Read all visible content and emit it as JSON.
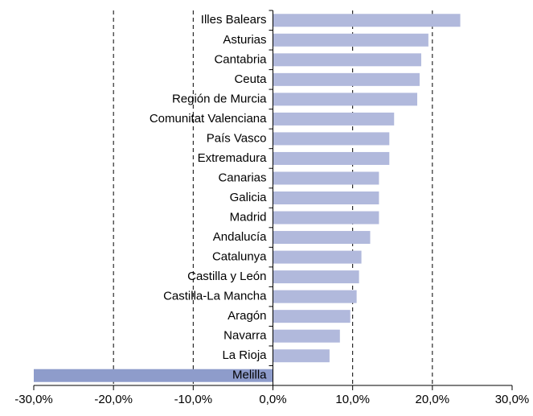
{
  "chart_data": {
    "type": "barh",
    "categories": [
      "Illes Balears",
      "Asturias",
      "Cantabria",
      "Ceuta",
      "Región de Murcia",
      "Comunitat Valenciana",
      "País Vasco",
      "Extremadura",
      "Canarias",
      "Galicia",
      "Madrid",
      "Andalucía",
      "Catalunya",
      "Castilla y León",
      "Castilla-La Mancha",
      "Aragón",
      "Navarra",
      "La Rioja",
      "Melilla"
    ],
    "values": [
      23.5,
      19.5,
      18.6,
      18.4,
      18.1,
      15.2,
      14.6,
      14.6,
      13.3,
      13.3,
      13.3,
      12.2,
      11.1,
      10.8,
      10.5,
      9.7,
      8.4,
      7.1,
      -30.0
    ],
    "colors": [
      "#b1b9dc",
      "#b1b9dc",
      "#b1b9dc",
      "#b1b9dc",
      "#b1b9dc",
      "#b1b9dc",
      "#b1b9dc",
      "#b1b9dc",
      "#b1b9dc",
      "#b1b9dc",
      "#b1b9dc",
      "#b1b9dc",
      "#b1b9dc",
      "#b1b9dc",
      "#b1b9dc",
      "#b1b9dc",
      "#b1b9dc",
      "#b1b9dc",
      "#8e9ccb"
    ],
    "xlim": [
      -30,
      30
    ],
    "xticks": [
      {
        "value": -30,
        "label": "-30,0%"
      },
      {
        "value": -20,
        "label": "-20,0%"
      },
      {
        "value": -10,
        "label": "-10,0%"
      },
      {
        "value": 0,
        "label": "0,0%"
      },
      {
        "value": 10,
        "label": "10,0%"
      },
      {
        "value": 20,
        "label": "20,0%"
      },
      {
        "value": 30,
        "label": "30,0%"
      }
    ],
    "grid": true
  }
}
